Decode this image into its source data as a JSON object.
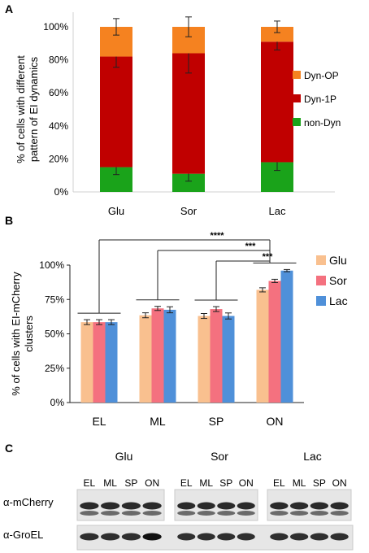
{
  "colors": {
    "dyn_op": "#f58220",
    "dyn_1p": "#c00000",
    "non_dyn": "#1aa31a",
    "glu": "#f9c08f",
    "sor": "#f4717f",
    "lac": "#4f90d9"
  },
  "panels": {
    "a": "A",
    "b": "B",
    "c": "C"
  },
  "chart_data": [
    {
      "type": "bar",
      "stacked": true,
      "categories": [
        "Glu",
        "Sor",
        "Lac"
      ],
      "ylabel": "% of cells with different pattern of EI dynamics",
      "ylabel_lines": [
        "% of cells with different",
        "pattern of EI dynamics"
      ],
      "ylim": [
        0,
        100
      ],
      "yticks": [
        0,
        20,
        40,
        60,
        80,
        100
      ],
      "ytick_labels": [
        "0%",
        "20%",
        "40%",
        "60%",
        "80%",
        "100%"
      ],
      "legend_position": "right",
      "series": [
        {
          "name": "non-Dyn",
          "color": "#1aa31a",
          "values": [
            15,
            11,
            18
          ],
          "err": [
            4.5,
            4.5,
            5
          ]
        },
        {
          "name": "Dyn-1P",
          "color": "#c00000",
          "values": [
            67,
            73,
            73
          ],
          "err": [
            6.5,
            12,
            5
          ]
        },
        {
          "name": "Dyn-OP",
          "color": "#f58220",
          "values": [
            18,
            16,
            9
          ],
          "err": [
            5,
            6,
            3.5
          ]
        }
      ]
    },
    {
      "type": "bar",
      "categories": [
        "EL",
        "ML",
        "SP",
        "ON"
      ],
      "ylabel": "% of cells with EI-mCherry clusters",
      "ylabel_lines": [
        "% of cells with EI-mCherry",
        "clusters"
      ],
      "ylim": [
        0,
        100
      ],
      "yticks": [
        0,
        25,
        50,
        75,
        100
      ],
      "ytick_labels": [
        "0%",
        "25%",
        "50%",
        "75%",
        "100%"
      ],
      "legend_position": "right",
      "series": [
        {
          "name": "Glu",
          "color": "#f9c08f",
          "values": [
            58.5,
            63.5,
            63,
            82
          ],
          "err": [
            1.8,
            1.8,
            1.8,
            1.5
          ]
        },
        {
          "name": "Sor",
          "color": "#f4717f",
          "values": [
            58.5,
            68.5,
            68,
            88.5
          ],
          "err": [
            1.8,
            1.5,
            1.8,
            1.2
          ]
        },
        {
          "name": "Lac",
          "color": "#4f90d9",
          "values": [
            58.5,
            67.5,
            63,
            96
          ],
          "err": [
            1.8,
            2.2,
            2.2,
            0.8
          ]
        }
      ],
      "significance": [
        "****",
        "***",
        "***"
      ]
    }
  ],
  "blot": {
    "groups": [
      "Glu",
      "Sor",
      "Lac"
    ],
    "lanes": [
      "EL",
      "ML",
      "SP",
      "ON"
    ],
    "rows": [
      "α-mCherry",
      "α-GroEL"
    ]
  }
}
